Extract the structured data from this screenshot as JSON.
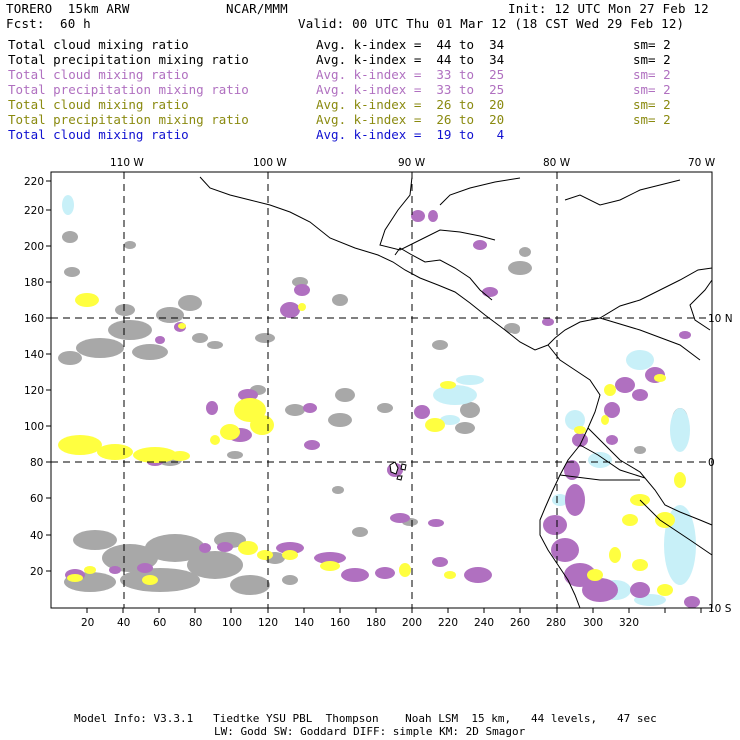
{
  "header": {
    "model": "TORERO  15km ARW",
    "org": "NCAR/MMM",
    "init": "Init: 12 UTC Mon 27 Feb 12",
    "fcst_label": "Fcst:",
    "fcst_value": "60 h",
    "valid": "Valid: 00 UTC Thu 01 Mar 12 (18 CST Wed 29 Feb 12)"
  },
  "legend": [
    {
      "field": "Total cloud mixing ratio",
      "kindex": "Avg. k-index =  44 to  34",
      "sm": "sm= 2",
      "color": "#000000"
    },
    {
      "field": "Total precipitation mixing ratio",
      "kindex": "Avg. k-index =  44 to  34",
      "sm": "sm= 2",
      "color": "#000000"
    },
    {
      "field": "Total cloud mixing ratio",
      "kindex": "Avg. k-index =  33 to  25",
      "sm": "sm= 2",
      "color": "#b070c0"
    },
    {
      "field": "Total precipitation mixing ratio",
      "kindex": "Avg. k-index =  33 to  25",
      "sm": "sm= 2",
      "color": "#b070c0"
    },
    {
      "field": "Total cloud mixing ratio",
      "kindex": "Avg. k-index =  26 to  20",
      "sm": "sm= 2",
      "color": "#8a8a10"
    },
    {
      "field": "Total precipitation mixing ratio",
      "kindex": "Avg. k-index =  26 to  20",
      "sm": "sm= 2",
      "color": "#8a8a10"
    },
    {
      "field": "Total cloud mixing ratio",
      "kindex": "Avg. k-index =  19 to   4",
      "sm": "",
      "color": "#1010d0"
    }
  ],
  "map": {
    "lon_labels": [
      "110 W",
      "100 W",
      "90 W",
      "80 W",
      "70 W"
    ],
    "lat_labels": [
      "10 N",
      "0",
      "10 S"
    ],
    "x_ticks": [
      "20",
      "40",
      "60",
      "80",
      "100",
      "120",
      "140",
      "160",
      "180",
      "200",
      "220",
      "240",
      "260",
      "280",
      "300",
      "320"
    ],
    "y_ticks": [
      "20",
      "40",
      "60",
      "80",
      "100",
      "120",
      "140",
      "160",
      "180",
      "200",
      "220"
    ],
    "colors": {
      "gray": "#a8a8a8",
      "purple": "#b070c0",
      "yellow": "#ffff40",
      "cyan": "#c8f0f8"
    }
  },
  "footer": {
    "line1": "Model Info: V3.3.1   Tiedtke YSU PBL  Thompson    Noah LSM  15 km,   44 levels,   47 sec",
    "line2": "LW: Godd SW: Goddard DIFF: simple KM: 2D Smagor"
  }
}
